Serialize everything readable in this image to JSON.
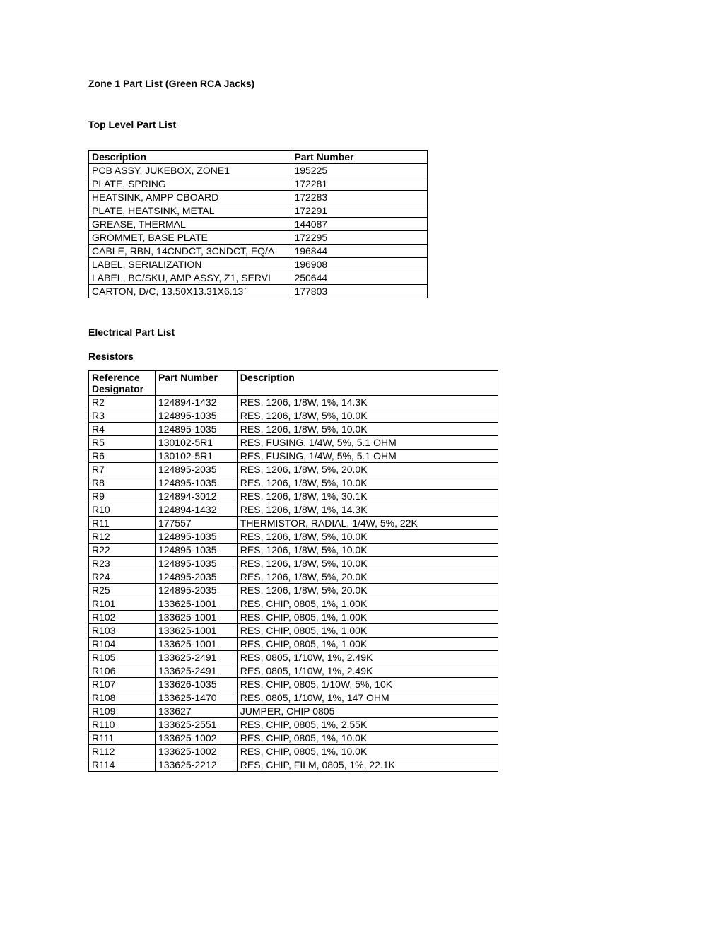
{
  "page_title": "Zone 1 Part List (Green RCA Jacks)",
  "top_level": {
    "heading": "Top Level Part List",
    "columns": [
      "Description",
      "Part Number"
    ],
    "rows": [
      [
        "PCB ASSY, JUKEBOX, ZONE1",
        "195225"
      ],
      [
        "PLATE, SPRING",
        "172281"
      ],
      [
        "HEATSINK, AMPP CBOARD",
        "172283"
      ],
      [
        "PLATE, HEATSINK, METAL",
        "172291"
      ],
      [
        "GREASE, THERMAL",
        "144087"
      ],
      [
        "GROMMET, BASE PLATE",
        "172295"
      ],
      [
        "CABLE, RBN, 14CNDCT, 3CNDCT, EQ/A",
        "196844"
      ],
      [
        "LABEL, SERIALIZATION",
        "196908"
      ],
      [
        "LABEL, BC/SKU, AMP ASSY, Z1, SERVI",
        "250644"
      ],
      [
        "CARTON, D/C, 13.50X13.31X6.13`",
        "177803"
      ]
    ]
  },
  "electrical": {
    "heading": "Electrical Part List",
    "resistors_heading": "Resistors",
    "columns": [
      "Reference Designator",
      "Part Number",
      "Description"
    ],
    "rows": [
      [
        "R2",
        "124894-1432",
        "RES, 1206, 1/8W, 1%, 14.3K"
      ],
      [
        "R3",
        "124895-1035",
        "RES, 1206, 1/8W, 5%, 10.0K"
      ],
      [
        "R4",
        "124895-1035",
        "RES, 1206, 1/8W, 5%, 10.0K"
      ],
      [
        "R5",
        "130102-5R1",
        "RES, FUSING, 1/4W, 5%, 5.1 OHM"
      ],
      [
        "R6",
        "130102-5R1",
        "RES, FUSING, 1/4W, 5%, 5.1 OHM"
      ],
      [
        "R7",
        "124895-2035",
        "RES, 1206, 1/8W, 5%, 20.0K"
      ],
      [
        "R8",
        "124895-1035",
        "RES, 1206, 1/8W, 5%, 10.0K"
      ],
      [
        "R9",
        "124894-3012",
        "RES, 1206, 1/8W, 1%, 30.1K"
      ],
      [
        "R10",
        "124894-1432",
        "RES, 1206, 1/8W, 1%, 14.3K"
      ],
      [
        "R11",
        "177557",
        "THERMISTOR, RADIAL, 1/4W, 5%, 22K"
      ],
      [
        "R12",
        "124895-1035",
        "RES, 1206, 1/8W, 5%, 10.0K"
      ],
      [
        "R22",
        "124895-1035",
        "RES, 1206, 1/8W, 5%, 10.0K"
      ],
      [
        "R23",
        "124895-1035",
        "RES, 1206, 1/8W, 5%, 10.0K"
      ],
      [
        "R24",
        "124895-2035",
        "RES, 1206, 1/8W, 5%, 20.0K"
      ],
      [
        "R25",
        "124895-2035",
        "RES, 1206, 1/8W, 5%, 20.0K"
      ],
      [
        "R101",
        "133625-1001",
        "RES, CHIP, 0805, 1%, 1.00K"
      ],
      [
        "R102",
        "133625-1001",
        "RES, CHIP, 0805, 1%, 1.00K"
      ],
      [
        "R103",
        "133625-1001",
        "RES, CHIP, 0805, 1%, 1.00K"
      ],
      [
        "R104",
        "133625-1001",
        "RES, CHIP, 0805, 1%, 1.00K"
      ],
      [
        "R105",
        "133625-2491",
        "RES, 0805, 1/10W, 1%, 2.49K"
      ],
      [
        "R106",
        "133625-2491",
        "RES, 0805, 1/10W, 1%, 2.49K"
      ],
      [
        "R107",
        "133626-1035",
        "RES, CHIP, 0805, 1/10W, 5%, 10K"
      ],
      [
        "R108",
        "133625-1470",
        "RES, 0805, 1/10W, 1%, 147 OHM"
      ],
      [
        "R109",
        "133627",
        "JUMPER, CHIP 0805"
      ],
      [
        "R110",
        "133625-2551",
        "RES, CHIP, 0805, 1%, 2.55K"
      ],
      [
        "R111",
        "133625-1002",
        "RES, CHIP, 0805, 1%, 10.0K"
      ],
      [
        "R112",
        "133625-1002",
        "RES, CHIP, 0805, 1%, 10.0K"
      ],
      [
        "R114",
        "133625-2212",
        "RES, CHIP, FILM, 0805, 1%, 22.1K"
      ]
    ]
  }
}
